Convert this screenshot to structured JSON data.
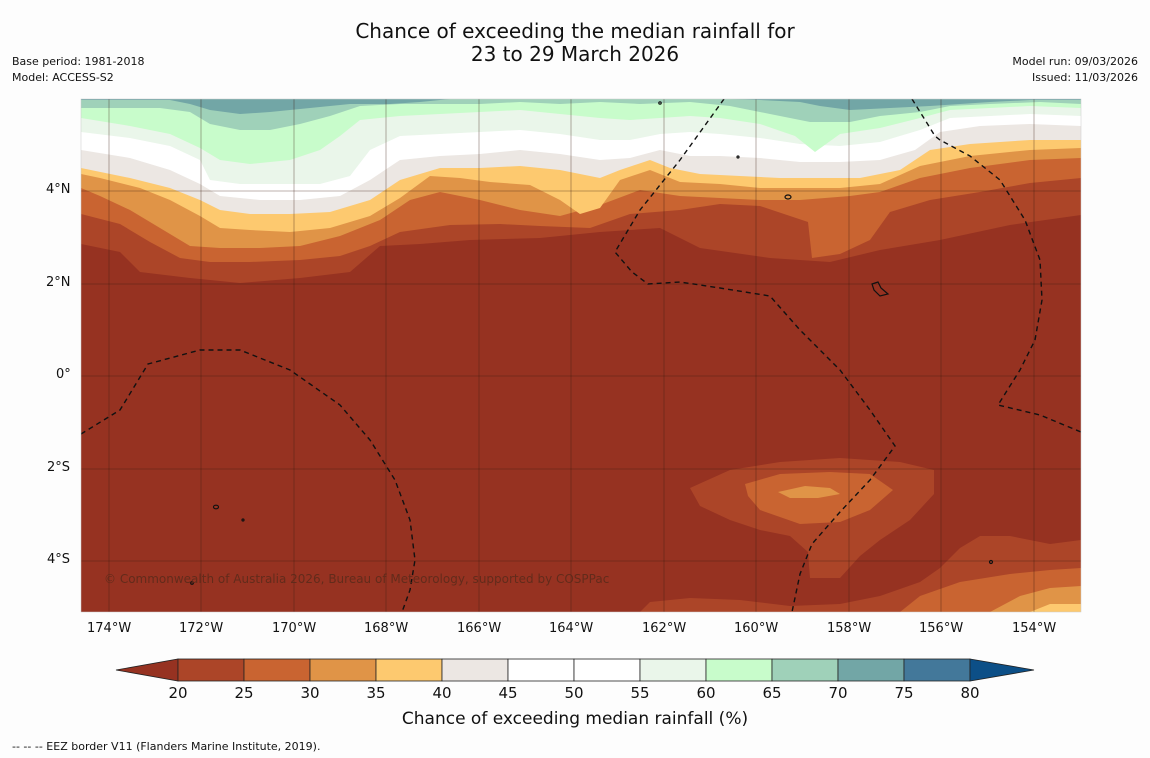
{
  "header": {
    "title_line1": "Chance of exceeding the median rainfall for",
    "title_line2": "23 to 29 March 2026",
    "base_period": "Base period: 1981-2018",
    "model": "Model: ACCESS-S2",
    "model_run": "Model run: 09/03/2026",
    "issued": "Issued: 11/03/2026"
  },
  "map": {
    "lat_labels": [
      "4°N",
      "2°N",
      "0°",
      "2°S",
      "4°S"
    ],
    "lon_labels": [
      "174°W",
      "172°W",
      "170°W",
      "168°W",
      "166°W",
      "164°W",
      "162°W",
      "160°W",
      "158°W",
      "156°W",
      "154°W"
    ],
    "copyright": "© Commonwealth of Australia 2026, Bureau of Meteorology, supported by COSPPac",
    "colors": {
      "lt20": "#963221",
      "c20_25": "#ac4528",
      "c25_30": "#c96431",
      "c30_35": "#e09447",
      "c35_40": "#fdc96f",
      "c40_45": "#ece7e3",
      "c45_55": "#ffffff",
      "c55_60": "#eaf6ea",
      "c60_65": "#c8fccb",
      "c65_70": "#9fd1b9",
      "c70_75": "#72a6a6",
      "c75_80": "#43789a",
      "gt80": "#0c4f87"
    }
  },
  "colorbar": {
    "ticks": [
      "20",
      "25",
      "30",
      "35",
      "40",
      "45",
      "50",
      "55",
      "60",
      "65",
      "70",
      "75",
      "80"
    ],
    "label": "Chance of exceeding median rainfall (%)"
  },
  "footnote": "--  --  -- EEZ border V11 (Flanders Marine Institute, 2019)."
}
